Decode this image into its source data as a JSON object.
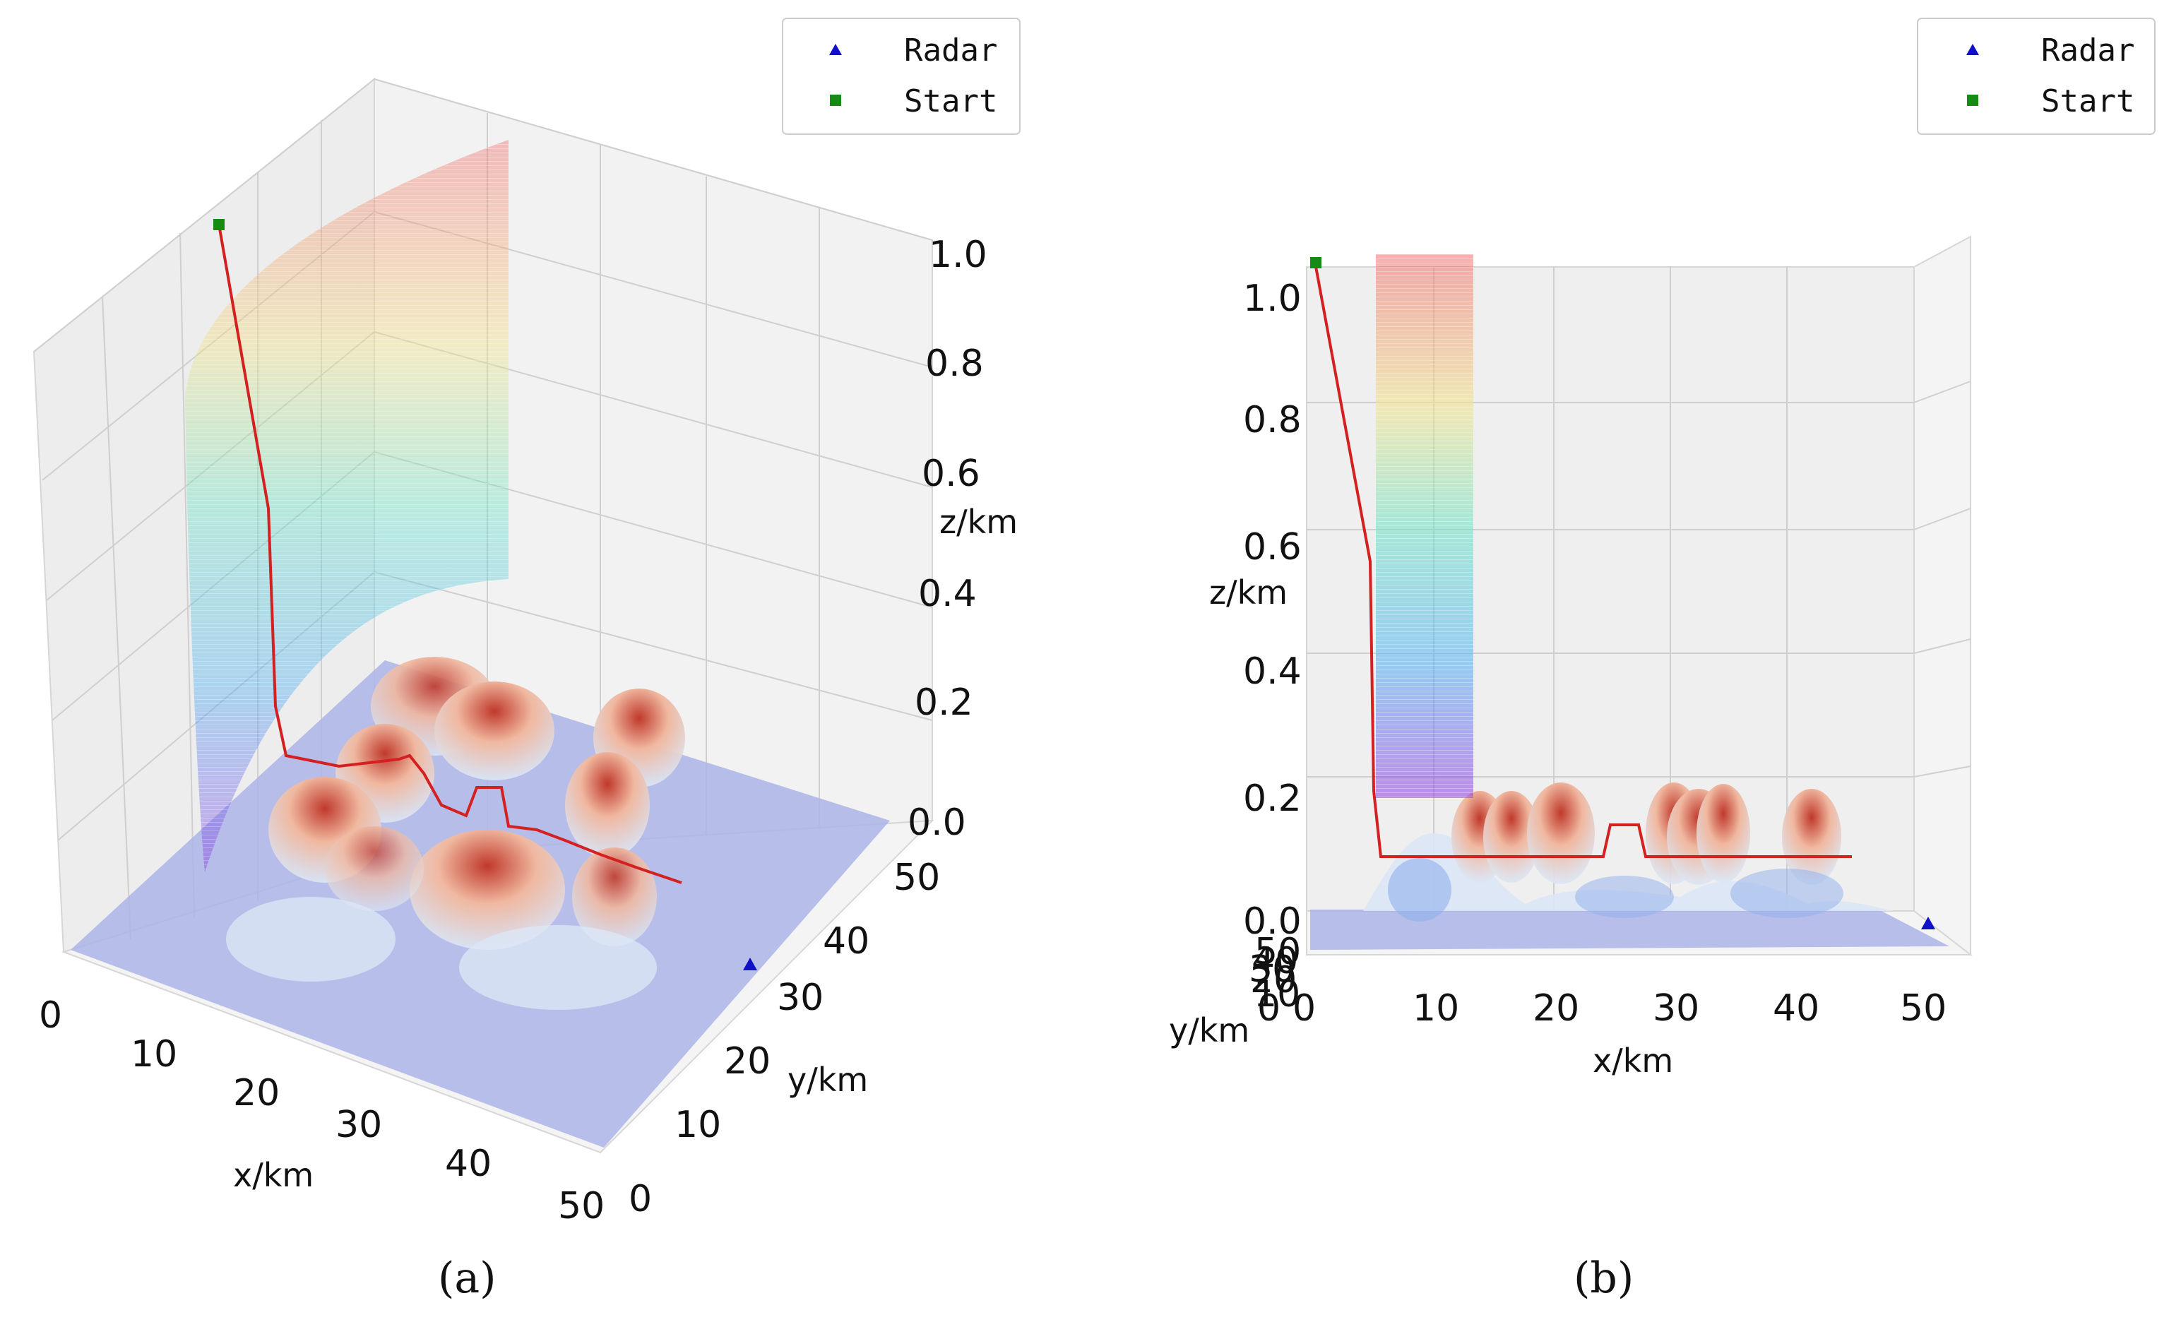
{
  "chart_data": [
    {
      "type": "3d-surface",
      "panel_label": "(a)",
      "xlabel": "x/km",
      "ylabel": "y/km",
      "zlabel": "z/km",
      "xlim": [
        0,
        50
      ],
      "ylim": [
        0,
        50
      ],
      "zlim": [
        0,
        1.0
      ],
      "x_ticks": [
        "0",
        "10",
        "20",
        "30",
        "40",
        "50"
      ],
      "y_ticks": [
        "0",
        "10",
        "20",
        "30",
        "40",
        "50"
      ],
      "z_ticks": [
        "0.0",
        "0.2",
        "0.4",
        "0.6",
        "0.8",
        "1.0"
      ],
      "legend": {
        "position": "top-right",
        "entries": [
          {
            "label": "Radar",
            "marker": "triangle",
            "color": "#1010c8"
          },
          {
            "label": "Start",
            "marker": "square",
            "color": "#158a15"
          }
        ]
      },
      "grid": true
    },
    {
      "type": "3d-surface",
      "panel_label": "(b)",
      "xlabel": "x/km",
      "ylabel": "y/km",
      "zlabel": "z/km",
      "xlim": [
        0,
        50
      ],
      "zlim": [
        0,
        1.0
      ],
      "x_ticks": [
        "0",
        "10",
        "20",
        "30",
        "40",
        "50"
      ],
      "y_ticks": [
        "0",
        "10",
        "20",
        "30",
        "40",
        "50"
      ],
      "z_ticks": [
        "0.0",
        "0.2",
        "0.4",
        "0.6",
        "0.8",
        "1.0"
      ],
      "legend": {
        "position": "top-right",
        "entries": [
          {
            "label": "Radar",
            "marker": "triangle",
            "color": "#1010c8"
          },
          {
            "label": "Start",
            "marker": "square",
            "color": "#158a15"
          }
        ]
      },
      "grid": true
    }
  ],
  "colors": {
    "path": "#d42020",
    "radar": "#1010c8",
    "start": "#158a15",
    "ground": "#aab4e6",
    "peak_top": "#c0392b",
    "peak_base": "#dce6f5"
  }
}
